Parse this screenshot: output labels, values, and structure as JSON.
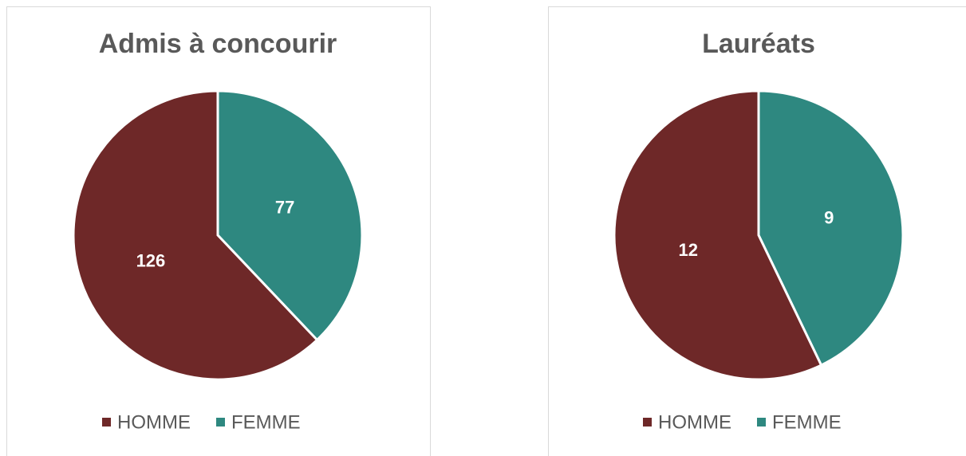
{
  "chart_data": [
    {
      "type": "pie",
      "title": "Admis à concourir",
      "categories": [
        "HOMME",
        "FEMME"
      ],
      "values": [
        126,
        77
      ],
      "colors": [
        "#6e2828",
        "#2e8880"
      ]
    },
    {
      "type": "pie",
      "title": "Lauréats",
      "categories": [
        "HOMME",
        "FEMME"
      ],
      "values": [
        12,
        9
      ],
      "colors": [
        "#6e2828",
        "#2e8880"
      ]
    }
  ]
}
